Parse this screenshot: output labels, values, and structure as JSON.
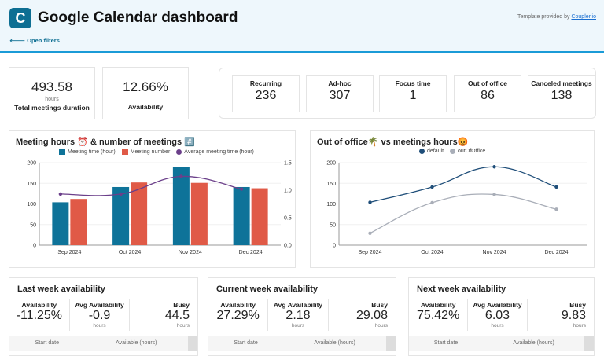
{
  "header": {
    "title": "Google Calendar dashboard",
    "provided_prefix": "Template provided by ",
    "provided_link": "Coupler.io",
    "open_filters": "Open filters",
    "logo": "C"
  },
  "kpis": [
    {
      "value": "493.58",
      "unit": "hours",
      "label": "Total meetings duration"
    },
    {
      "value": "12.66%",
      "label": "Availability"
    }
  ],
  "stats": [
    {
      "label": "Recurring",
      "value": "236"
    },
    {
      "label": "Ad-hoc",
      "value": "307"
    },
    {
      "label": "Focus time",
      "value": "1"
    },
    {
      "label": "Out of office",
      "value": "86"
    },
    {
      "label": "Canceled meetings",
      "value": "138"
    }
  ],
  "chart_data": [
    {
      "type": "bar",
      "title": "Meeting hours ⏰ & number of meetings #️⃣",
      "categories": [
        "Sep 2024",
        "Oct 2024",
        "Nov 2024",
        "Dec 2024"
      ],
      "series": [
        {
          "name": "Meeting time (hour)",
          "values": [
            104,
            141,
            189,
            141
          ],
          "color": "#0e7399",
          "axis": "left"
        },
        {
          "name": "Meeting number",
          "values": [
            112,
            152,
            151,
            138
          ],
          "color": "#e05a47",
          "axis": "left"
        },
        {
          "name": "Average meeting time (hour)",
          "type": "line",
          "values": [
            0.93,
            0.93,
            1.25,
            1.02
          ],
          "color": "#6b3f8a",
          "axis": "right"
        }
      ],
      "ylim": [
        0,
        200
      ],
      "yticks": [
        "0",
        "50",
        "100",
        "150",
        "200"
      ],
      "y2lim": [
        0,
        1.5
      ],
      "y2ticks": [
        "0.0",
        "0.5",
        "1.0",
        "1.5"
      ]
    },
    {
      "type": "line",
      "title": "Out of office🌴  vs  meetings hours😡",
      "categories": [
        "Sep 2024",
        "Oct 2024",
        "Nov 2024",
        "Dec 2024"
      ],
      "series": [
        {
          "name": "default",
          "values": [
            104,
            141,
            190,
            141
          ],
          "color": "#1f4e79"
        },
        {
          "name": "outOfOffice",
          "values": [
            29,
            103,
            123,
            87
          ],
          "color": "#a9aeb8"
        }
      ],
      "ylim": [
        0,
        200
      ],
      "yticks": [
        "0",
        "50",
        "100",
        "150",
        "200"
      ]
    }
  ],
  "weeks": [
    {
      "title": "Last week availability",
      "availability": "-11.25%",
      "avg": "-0.9",
      "busy": "44.5"
    },
    {
      "title": "Current week availability",
      "availability": "27.29%",
      "avg": "2.18",
      "busy": "29.08"
    },
    {
      "title": "Next week availability",
      "availability": "75.42%",
      "avg": "6.03",
      "busy": "9.83"
    }
  ],
  "week_labels": {
    "availability": "Availability",
    "avg": "Avg Availability",
    "busy": "Busy",
    "unit": "hours",
    "col1": "Start date",
    "col2": "Available (hours)"
  }
}
